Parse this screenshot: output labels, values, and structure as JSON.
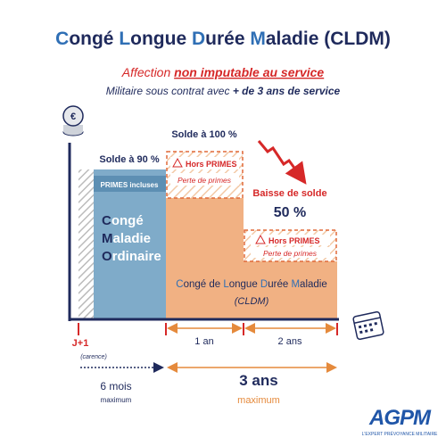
{
  "header": {
    "title_parts": [
      "C",
      "ongé ",
      "L",
      "ongue ",
      "D",
      "urée ",
      "M",
      "aladie (CLDM)"
    ],
    "line1_prefix": "Affection ",
    "line1_emphasis": "non imputable au service",
    "line2_prefix": "Militaire sous contrat avec ",
    "line2_emphasis": "+ de 3 ans de service"
  },
  "blocks": {
    "cmo": {
      "solde": "Solde à 90 %",
      "primes": "PRIMES incluses",
      "label_parts": [
        [
          "C",
          "ongé"
        ],
        [
          "M",
          "aladie"
        ],
        [
          "O",
          "rdinaire"
        ]
      ]
    },
    "cldm1": {
      "solde": "Solde à 100 %",
      "hors": "Hors PRIMES",
      "perte": "Perte de primes"
    },
    "cldm2": {
      "baisse": "Baisse de solde",
      "pct": "50 %",
      "hors": "Hors PRIMES",
      "perte": "Perte de primes"
    },
    "cldm_label_parts": [
      "C",
      "ongé de ",
      "L",
      "ongue ",
      "D",
      "urée ",
      "M",
      "aladie"
    ],
    "cldm_abbr": "(CLDM)"
  },
  "timeline": {
    "start": "J+1",
    "start_note": "(carence)",
    "year1": "1 an",
    "year2": "2 ans",
    "cmo_duration": "6 mois",
    "cmo_max": "maximum",
    "cldm_duration": "3 ans",
    "cldm_max": "maximum"
  },
  "logo": {
    "name": "AGPM",
    "tagline": "L'EXPERT PRÉVOYANCE MILITAIRE"
  }
}
